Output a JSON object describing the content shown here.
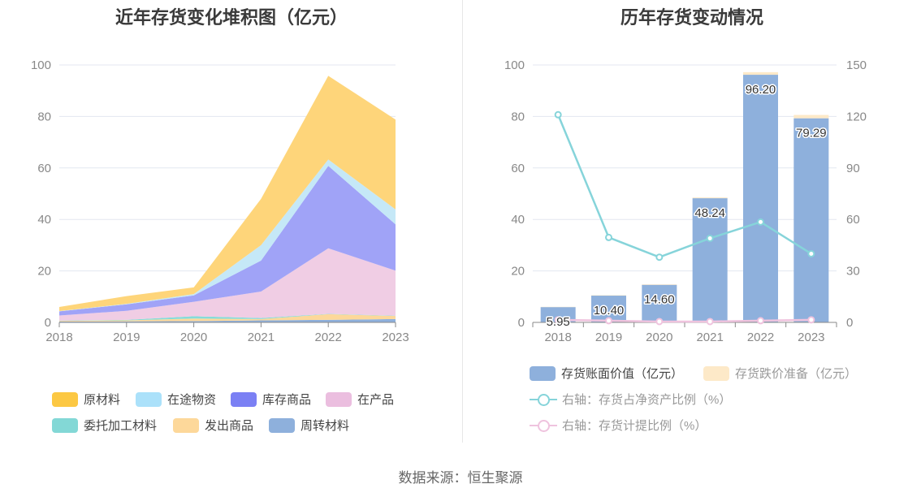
{
  "source": "数据来源：恒生聚源",
  "chart_data": [
    {
      "type": "area",
      "stacked": true,
      "title": "近年存货变化堆积图（亿元）",
      "x": [
        "2018",
        "2019",
        "2020",
        "2021",
        "2022",
        "2023"
      ],
      "ylim": [
        0,
        100
      ],
      "yticks": [
        "0",
        "20",
        "40",
        "60",
        "80",
        "100"
      ],
      "legend_position": "bottom",
      "series": [
        {
          "name": "周转材料",
          "color": "#8eb0dc",
          "values": [
            0.3,
            0.4,
            0.5,
            0.8,
            1.0,
            1.3
          ]
        },
        {
          "name": "发出商品",
          "color": "#fdd89a",
          "values": [
            0.3,
            0.4,
            1.0,
            0.5,
            2.2,
            1.2
          ]
        },
        {
          "name": "委托加工材料",
          "color": "#86dcd9",
          "values": [
            0.1,
            0.2,
            0.9,
            0.4,
            0.1,
            0.1
          ]
        },
        {
          "name": "在产品",
          "color": "#f0cde4",
          "values": [
            2.0,
            3.5,
            5.6,
            10.3,
            25.5,
            17.5
          ]
        },
        {
          "name": "库存商品",
          "color": "#a0a3f7",
          "values": [
            1.6,
            2.5,
            2.5,
            12.0,
            32.0,
            18.0
          ]
        },
        {
          "name": "在途物资",
          "color": "#c5e8f7",
          "values": [
            0.1,
            0.2,
            0.5,
            6.0,
            2.5,
            5.8
          ]
        },
        {
          "name": "原材料",
          "color": "#fed57a",
          "values": [
            1.6,
            3.0,
            2.6,
            18.0,
            32.5,
            34.9
          ]
        }
      ],
      "legend": [
        {
          "name": "原材料",
          "color": "#fcc843"
        },
        {
          "name": "在途物资",
          "color": "#abe1fa"
        },
        {
          "name": "库存商品",
          "color": "#7b80f4"
        },
        {
          "name": "在产品",
          "color": "#ebbedf"
        },
        {
          "name": "委托加工材料",
          "color": "#83d8d6"
        },
        {
          "name": "发出商品",
          "color": "#fdd89a"
        },
        {
          "name": "周转材料",
          "color": "#8eb0dc"
        }
      ]
    },
    {
      "type": "bar",
      "title": "历年存货变动情况",
      "x": [
        "2018",
        "2019",
        "2020",
        "2021",
        "2022",
        "2023"
      ],
      "ylim": [
        0,
        100
      ],
      "yticks": [
        "0",
        "20",
        "40",
        "60",
        "80",
        "100"
      ],
      "y2lim": [
        0,
        150
      ],
      "y2ticks": [
        "0",
        "30",
        "60",
        "90",
        "120",
        "150"
      ],
      "legend_position": "bottom",
      "bars": [
        {
          "name": "存货账面价值（亿元）",
          "color": "#8eb0dc",
          "values": [
            5.95,
            10.4,
            14.6,
            48.24,
            96.2,
            79.29
          ],
          "labels": [
            "5.95",
            "10.40",
            "14.60",
            "48.24",
            "96.20",
            "79.29"
          ]
        },
        {
          "name": "存货跌价准备（亿元）",
          "color": "#fde9c8",
          "values": [
            0.1,
            0.15,
            0.2,
            0.3,
            1.0,
            1.3
          ]
        }
      ],
      "lines": [
        {
          "name": "右轴：存货占净资产比例（%）",
          "color": "#86d4da",
          "values": [
            121,
            49.5,
            38,
            49,
            58.5,
            40
          ]
        },
        {
          "name": "右轴：存货计提比例（%）",
          "color": "#efc3de",
          "values": [
            1.5,
            1.0,
            0.5,
            0.5,
            1.0,
            1.5
          ]
        }
      ]
    }
  ]
}
